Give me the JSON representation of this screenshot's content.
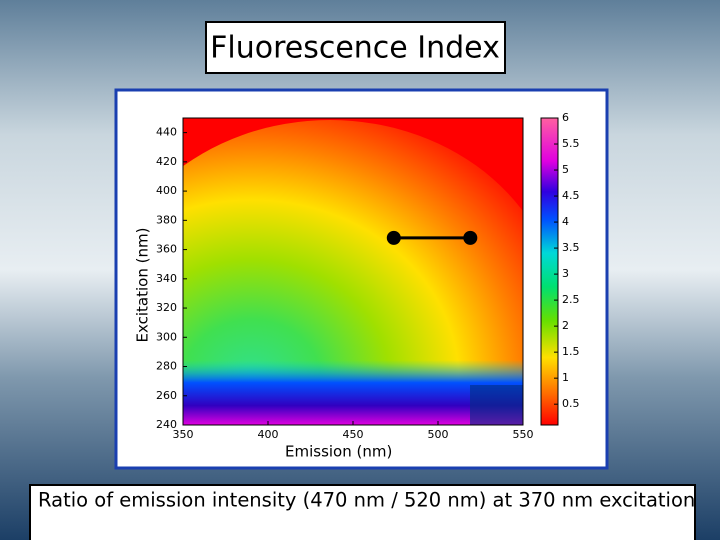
{
  "title": "Fluorescence Index",
  "caption": "Ratio of emission intensity (470 nm / 520 nm) at 370 nm excitation",
  "chart_data": {
    "type": "contour",
    "xlabel": "Emission (nm)",
    "ylabel": "Excitation (nm)",
    "xlim": [
      350,
      550
    ],
    "xticks": [
      350,
      400,
      450,
      500,
      550
    ],
    "ylim": [
      240,
      450
    ],
    "yticks": [
      240,
      260,
      280,
      300,
      320,
      340,
      360,
      380,
      400,
      420,
      440
    ],
    "colorbar": {
      "lim": [
        0.1,
        6
      ],
      "ticks": [
        0.5,
        1,
        1.5,
        2,
        2.5,
        3,
        3.5,
        4,
        4.5,
        5,
        5.5,
        6
      ]
    },
    "annotation": {
      "x": [
        474,
        519
      ],
      "y": [
        368,
        368
      ],
      "color": "#000000"
    }
  }
}
